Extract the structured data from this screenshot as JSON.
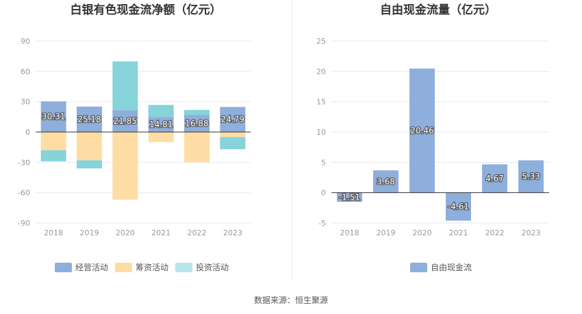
{
  "source_text": "数据来源：恒生聚源",
  "colors": {
    "operating": "#8EAEDC",
    "financing": "#FEDDA4",
    "investing": "#86D3DA",
    "fcf": "#8EAEDC",
    "axis": "#333333",
    "grid": "#E8E8F0"
  },
  "chart_data": [
    {
      "type": "bar",
      "stacked": true,
      "title": "白银有色现金流净额（亿元）",
      "categories": [
        "2018",
        "2019",
        "2020",
        "2021",
        "2022",
        "2023"
      ],
      "ylim": [
        -90,
        90
      ],
      "yticks": [
        90,
        60,
        30,
        0,
        -30,
        -60,
        -90
      ],
      "grid": true,
      "legend_position": "bottom",
      "series": [
        {
          "name": "经营活动",
          "values": [
            30.31,
            25.18,
            21.85,
            14.81,
            16.88,
            24.79
          ],
          "show_labels": true
        },
        {
          "name": "筹资活动",
          "values": [
            -18,
            -28,
            -67,
            -10,
            -30,
            -5
          ]
        },
        {
          "name": "投资活动",
          "values": [
            -11,
            -8,
            48,
            12,
            5,
            -12
          ]
        }
      ]
    },
    {
      "type": "bar",
      "title": "自由现金流量（亿元）",
      "categories": [
        "2018",
        "2019",
        "2020",
        "2021",
        "2022",
        "2023"
      ],
      "ylim": [
        -5,
        25
      ],
      "yticks": [
        25,
        20,
        15,
        10,
        5,
        0,
        -5
      ],
      "grid": true,
      "legend_position": "bottom",
      "series": [
        {
          "name": "自由现金流",
          "values": [
            -1.51,
            3.68,
            20.46,
            -4.61,
            4.67,
            5.33
          ],
          "show_labels": true
        }
      ]
    }
  ]
}
